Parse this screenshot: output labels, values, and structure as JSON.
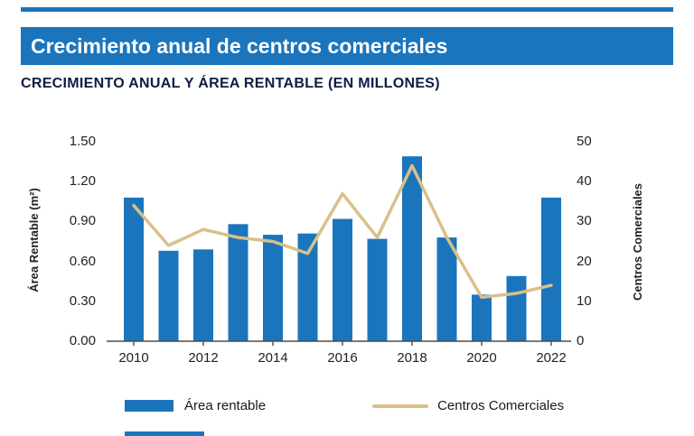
{
  "colors": {
    "accent_blue": "#1b75bc",
    "line_tan": "#d9c08a",
    "subtitle_navy": "#111c44",
    "axis_gray": "#4d4d4d"
  },
  "header": {
    "title": "Crecimiento anual de centros comerciales",
    "subtitle": "CRECIMIENTO ANUAL Y ÁREA RENTABLE (EN MILLONES)"
  },
  "legend": {
    "area_label": "Área rentable",
    "centros_label": "Centros Comerciales"
  },
  "chart_data": {
    "type": "bar",
    "subtype": "combo-bar-line",
    "x": [
      2010,
      2011,
      2012,
      2013,
      2014,
      2015,
      2016,
      2017,
      2018,
      2019,
      2020,
      2021,
      2022
    ],
    "series": [
      {
        "name": "Área rentable",
        "type": "bar",
        "axis": "left",
        "color": "#1b75bc",
        "values": [
          1.08,
          0.68,
          0.69,
          0.88,
          0.8,
          0.81,
          0.92,
          0.77,
          1.39,
          0.78,
          0.35,
          0.49,
          1.08
        ]
      },
      {
        "name": "Centros Comerciales",
        "type": "line",
        "axis": "right",
        "color": "#d9c08a",
        "values": [
          34,
          24,
          28,
          26,
          25,
          22,
          37,
          26,
          44,
          26,
          11,
          12,
          14
        ]
      }
    ],
    "left_axis": {
      "label": "Área Rentable (m²)",
      "min": 0,
      "max": 1.5,
      "ticks": [
        "1.50",
        "1.20",
        "0.90",
        "0.60",
        "0.30",
        "0.00"
      ]
    },
    "right_axis": {
      "label": "Centros Comerciales",
      "min": 0,
      "max": 50,
      "ticks": [
        "50",
        "40",
        "30",
        "20",
        "10",
        "0"
      ]
    },
    "x_tick_labels": [
      "2010",
      "2012",
      "2014",
      "2016",
      "2018",
      "2020",
      "2022"
    ],
    "title": "Crecimiento anual de centros comerciales",
    "grid": false,
    "legend_position": "bottom"
  }
}
